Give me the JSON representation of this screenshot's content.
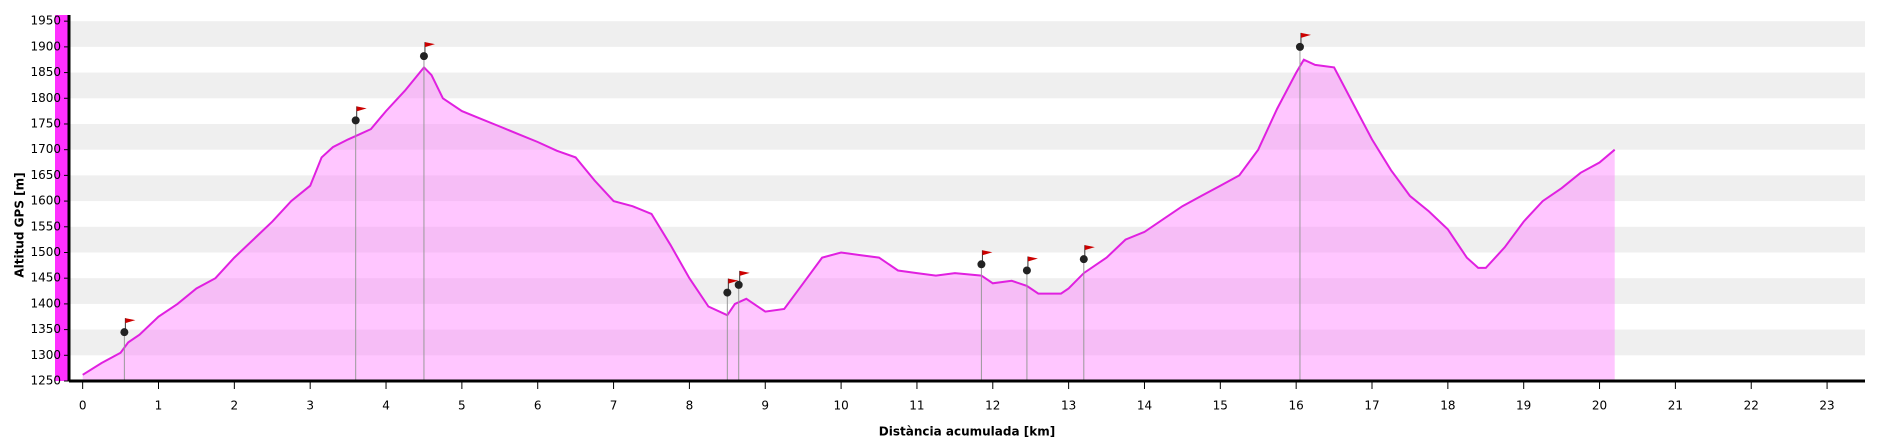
{
  "chart_data": {
    "type": "area",
    "x_label": "Distància acumulada [km]",
    "y_label": "Altitud GPS [m]",
    "color": "#e020e0",
    "fill": "#ff80ff",
    "grid": true,
    "x": [
      0,
      0.25,
      0.5,
      0.6,
      0.75,
      1.0,
      1.25,
      1.5,
      1.75,
      2.0,
      2.25,
      2.5,
      2.75,
      3.0,
      3.15,
      3.3,
      3.5,
      3.65,
      3.8,
      4.0,
      4.25,
      4.5,
      4.6,
      4.75,
      5.0,
      5.25,
      5.5,
      5.75,
      6.0,
      6.25,
      6.5,
      6.75,
      7.0,
      7.25,
      7.5,
      7.75,
      8.0,
      8.25,
      8.5,
      8.6,
      8.75,
      9.0,
      9.25,
      9.5,
      9.75,
      10.0,
      10.25,
      10.5,
      10.75,
      11.0,
      11.25,
      11.5,
      11.85,
      12.0,
      12.25,
      12.45,
      12.6,
      12.9,
      13.0,
      13.2,
      13.5,
      13.75,
      14.0,
      14.25,
      14.5,
      14.75,
      15.0,
      15.25,
      15.5,
      15.75,
      16.0,
      16.1,
      16.25,
      16.5,
      16.75,
      17.0,
      17.25,
      17.5,
      17.75,
      18.0,
      18.25,
      18.4,
      18.5,
      18.75,
      19.0,
      19.25,
      19.5,
      19.75,
      20.0,
      20.2
    ],
    "values": [
      1262,
      1285,
      1305,
      1325,
      1340,
      1375,
      1400,
      1430,
      1450,
      1490,
      1525,
      1560,
      1600,
      1630,
      1685,
      1705,
      1720,
      1730,
      1740,
      1775,
      1815,
      1860,
      1845,
      1800,
      1775,
      1760,
      1745,
      1730,
      1715,
      1698,
      1685,
      1640,
      1600,
      1590,
      1575,
      1515,
      1450,
      1395,
      1378,
      1400,
      1410,
      1385,
      1390,
      1440,
      1490,
      1500,
      1495,
      1490,
      1465,
      1460,
      1455,
      1460,
      1455,
      1440,
      1445,
      1435,
      1420,
      1420,
      1430,
      1460,
      1490,
      1525,
      1540,
      1565,
      1590,
      1610,
      1630,
      1650,
      1700,
      1780,
      1850,
      1875,
      1865,
      1860,
      1790,
      1720,
      1660,
      1610,
      1580,
      1545,
      1490,
      1470,
      1470,
      1510,
      1560,
      1600,
      1625,
      1655,
      1675,
      1700
    ],
    "markers": {
      "color": "#cc0000",
      "x": [
        0.55,
        3.6,
        4.5,
        8.5,
        8.65,
        11.85,
        12.45,
        13.2,
        16.05
      ],
      "values": [
        1345,
        1757,
        1882,
        1422,
        1437,
        1477,
        1465,
        1487,
        1900
      ]
    },
    "xlim": [
      -0.18,
      23.5
    ],
    "ylim": [
      1250,
      1962
    ],
    "xticks": [
      0,
      1,
      2,
      3,
      4,
      5,
      6,
      7,
      8,
      9,
      10,
      11,
      12,
      13,
      14,
      15,
      16,
      17,
      18,
      19,
      20,
      21,
      22,
      23
    ],
    "yticks": [
      1250,
      1300,
      1350,
      1400,
      1450,
      1500,
      1550,
      1600,
      1650,
      1700,
      1750,
      1800,
      1850,
      1900,
      1950
    ]
  }
}
